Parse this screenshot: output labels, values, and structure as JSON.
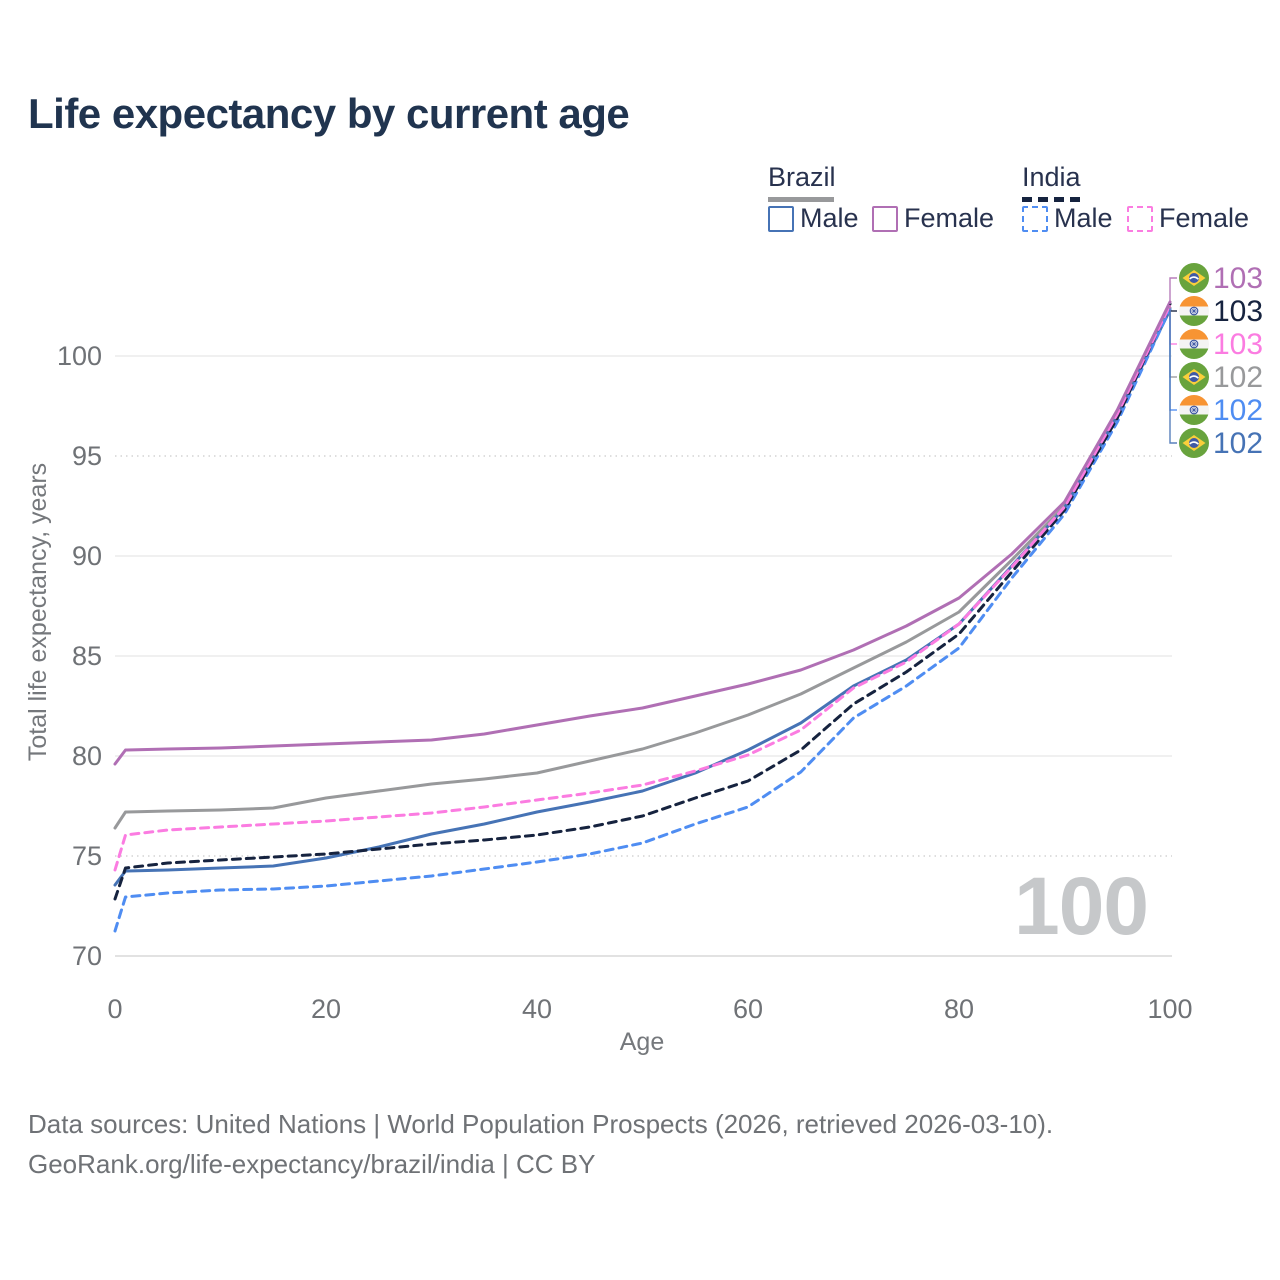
{
  "title": "Life expectancy by current age",
  "watermark": "100",
  "legend": {
    "brazil_label": "Brazil",
    "india_label": "India",
    "items": [
      {
        "id": "brazil-male",
        "label": "Male",
        "color": "#4673b5",
        "dashed": false
      },
      {
        "id": "brazil-female",
        "label": "Female",
        "color": "#b06fb4",
        "dashed": false
      },
      {
        "id": "india-male",
        "label": "Male",
        "color": "#4f8df2",
        "dashed": true
      },
      {
        "id": "india-female",
        "label": "Female",
        "color": "#fb7ce1",
        "dashed": true
      }
    ]
  },
  "footer": {
    "line1": "Data sources: United Nations | World Population Prospects (2026, retrieved 2026-03-10).",
    "line2": "GeoRank.org/life-expectancy/brazil/india | CC BY"
  },
  "chart_data": {
    "type": "line",
    "title": "Life expectancy by current age",
    "xlabel": "Age",
    "ylabel": "Total life expectancy, years",
    "xlim": [
      0,
      100
    ],
    "ylim": [
      70,
      103.5
    ],
    "x_ticks": [
      0,
      20,
      40,
      60,
      80,
      100
    ],
    "y_ticks": [
      70,
      75,
      80,
      85,
      90,
      95,
      100
    ],
    "dotted_gridlines": [
      75,
      95
    ],
    "grid": "horizontal",
    "x": [
      0,
      1,
      5,
      10,
      15,
      20,
      25,
      30,
      35,
      40,
      45,
      50,
      55,
      60,
      65,
      70,
      75,
      80,
      85,
      90,
      95,
      100
    ],
    "series": [
      {
        "name": "Brazil Both sexes",
        "country": "Brazil",
        "sex": "Both",
        "color": "#98999b",
        "dashed": false,
        "end_label": "102",
        "values": [
          76.4,
          77.2,
          77.25,
          77.3,
          77.4,
          77.9,
          78.25,
          78.6,
          78.85,
          79.15,
          79.75,
          80.35,
          81.15,
          82.05,
          83.1,
          84.4,
          85.7,
          87.2,
          89.8,
          92.5,
          97.1,
          102.4
        ]
      },
      {
        "name": "Brazil Male",
        "country": "Brazil",
        "sex": "Male",
        "color": "#4673b5",
        "dashed": false,
        "end_label": "102",
        "values": [
          73.55,
          74.25,
          74.3,
          74.4,
          74.5,
          74.9,
          75.45,
          76.1,
          76.6,
          77.2,
          77.7,
          78.25,
          79.15,
          80.3,
          81.65,
          83.5,
          84.8,
          86.6,
          89.5,
          92.4,
          97.0,
          102.3
        ]
      },
      {
        "name": "India Male",
        "country": "India",
        "sex": "Male",
        "color": "#4f8df2",
        "dashed": true,
        "end_label": "102",
        "values": [
          71.25,
          72.95,
          73.15,
          73.3,
          73.35,
          73.5,
          73.75,
          74.0,
          74.35,
          74.7,
          75.1,
          75.65,
          76.6,
          77.45,
          79.2,
          81.9,
          83.5,
          85.4,
          88.9,
          92.1,
          96.7,
          102.35
        ]
      },
      {
        "name": "India Both sexes",
        "country": "India",
        "sex": "Both",
        "color": "#16233f",
        "dashed": true,
        "end_label": "103",
        "values": [
          72.85,
          74.4,
          74.65,
          74.8,
          74.95,
          75.1,
          75.35,
          75.6,
          75.8,
          76.05,
          76.45,
          77.0,
          77.9,
          78.75,
          80.3,
          82.6,
          84.2,
          86.1,
          89.2,
          92.3,
          96.9,
          102.6
        ]
      },
      {
        "name": "India Female",
        "country": "India",
        "sex": "Female",
        "color": "#fb7ce1",
        "dashed": true,
        "end_label": "103",
        "values": [
          74.3,
          76.05,
          76.3,
          76.45,
          76.6,
          76.75,
          76.95,
          77.15,
          77.45,
          77.8,
          78.15,
          78.55,
          79.25,
          80.05,
          81.3,
          83.4,
          84.7,
          86.6,
          89.45,
          92.45,
          97.1,
          102.55
        ]
      },
      {
        "name": "Brazil Female",
        "country": "Brazil",
        "sex": "Female",
        "color": "#b06fb4",
        "dashed": false,
        "end_label": "103",
        "values": [
          79.6,
          80.3,
          80.35,
          80.4,
          80.5,
          80.6,
          80.7,
          80.8,
          81.1,
          81.55,
          82.0,
          82.4,
          83.0,
          83.6,
          84.3,
          85.3,
          86.5,
          87.9,
          90.1,
          92.7,
          97.3,
          102.7
        ]
      }
    ],
    "end_labels": [
      {
        "series": "Brazil Female",
        "flag": "brazil",
        "value": "103"
      },
      {
        "series": "India Both sexes",
        "flag": "india",
        "value": "103"
      },
      {
        "series": "India Female",
        "flag": "india",
        "value": "103"
      },
      {
        "series": "Brazil Both sexes",
        "flag": "brazil",
        "value": "102"
      },
      {
        "series": "India Male",
        "flag": "india",
        "value": "102"
      },
      {
        "series": "Brazil Male",
        "flag": "brazil",
        "value": "102"
      }
    ]
  }
}
